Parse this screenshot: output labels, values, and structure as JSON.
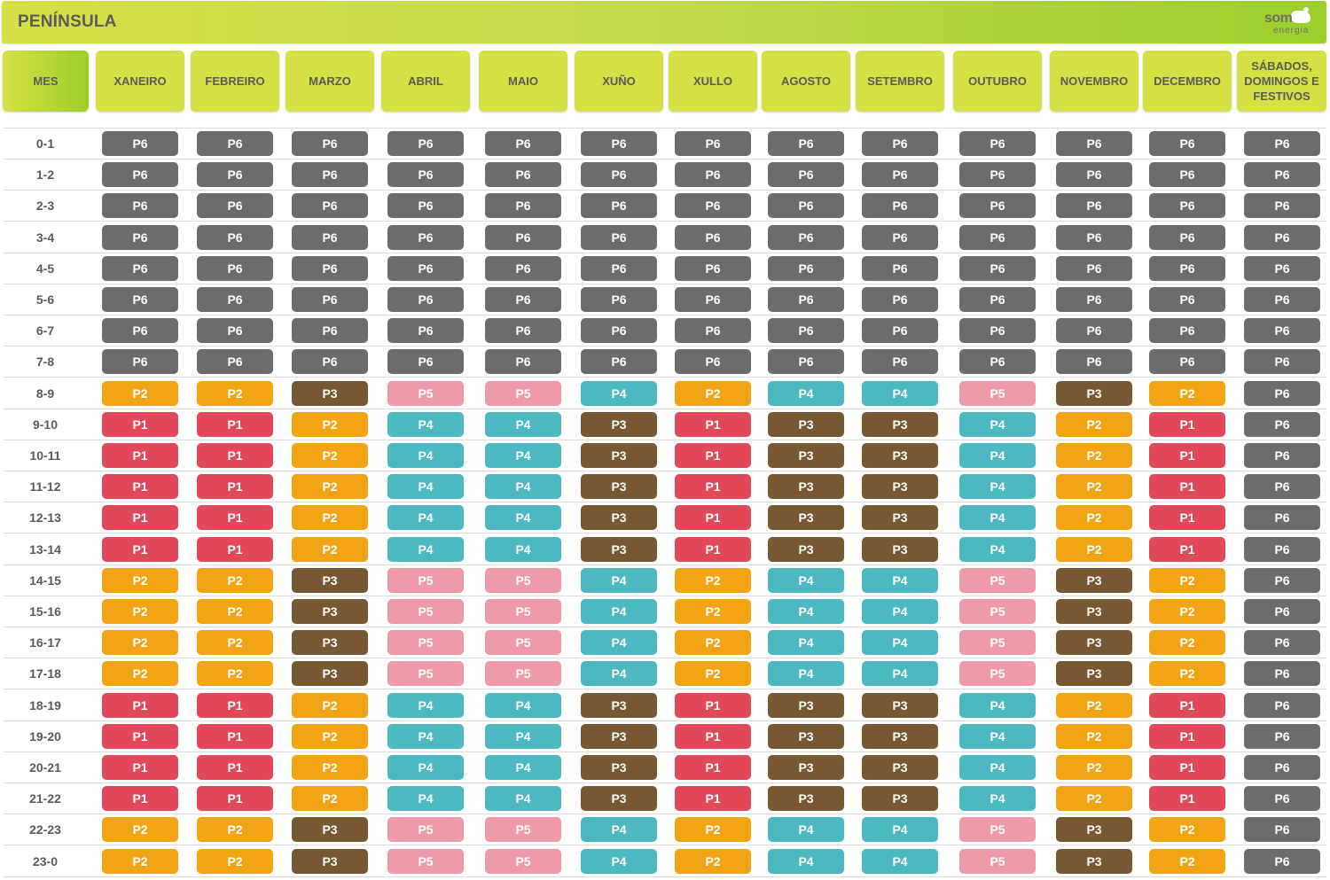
{
  "title": "PENÍNSULA",
  "logo": {
    "line1": "som",
    "line2": "energia"
  },
  "header": {
    "hour_col": "MES",
    "months": [
      "XANEIRO",
      "FEBREIRO",
      "MARZO",
      "ABRIL",
      "MAIO",
      "XUÑO",
      "XULLO",
      "AGOSTO",
      "SETEMBRO",
      "OUTUBRO",
      "NOVEMBRO",
      "DECEMBRO"
    ],
    "weekend": "SÁBADOS, DOMINGOS E FESTIVOS"
  },
  "period_colors": {
    "P1": "#e1495a",
    "P2": "#f2a414",
    "P3": "#785733",
    "P4": "#4cb8c1",
    "P5": "#ef9aa8",
    "P6": "#6c6c6c"
  },
  "hours": [
    "0-1",
    "1-2",
    "2-3",
    "3-4",
    "4-5",
    "5-6",
    "6-7",
    "7-8",
    "8-9",
    "9-10",
    "10-11",
    "11-12",
    "12-13",
    "13-14",
    "14-15",
    "15-16",
    "16-17",
    "17-18",
    "18-19",
    "19-20",
    "20-21",
    "21-22",
    "22-23",
    "23-0"
  ],
  "patterns": {
    "night": [
      "P6",
      "P6",
      "P6",
      "P6",
      "P6",
      "P6",
      "P6",
      "P6",
      "P6",
      "P6",
      "P6",
      "P6",
      "P6"
    ],
    "shoulder": [
      "P2",
      "P2",
      "P3",
      "P5",
      "P5",
      "P4",
      "P2",
      "P4",
      "P4",
      "P5",
      "P3",
      "P2",
      "P6"
    ],
    "peak": [
      "P1",
      "P1",
      "P2",
      "P4",
      "P4",
      "P3",
      "P1",
      "P3",
      "P3",
      "P4",
      "P2",
      "P1",
      "P6"
    ]
  },
  "rows": [
    [
      "P6",
      "P6",
      "P6",
      "P6",
      "P6",
      "P6",
      "P6",
      "P6",
      "P6",
      "P6",
      "P6",
      "P6",
      "P6"
    ],
    [
      "P6",
      "P6",
      "P6",
      "P6",
      "P6",
      "P6",
      "P6",
      "P6",
      "P6",
      "P6",
      "P6",
      "P6",
      "P6"
    ],
    [
      "P6",
      "P6",
      "P6",
      "P6",
      "P6",
      "P6",
      "P6",
      "P6",
      "P6",
      "P6",
      "P6",
      "P6",
      "P6"
    ],
    [
      "P6",
      "P6",
      "P6",
      "P6",
      "P6",
      "P6",
      "P6",
      "P6",
      "P6",
      "P6",
      "P6",
      "P6",
      "P6"
    ],
    [
      "P6",
      "P6",
      "P6",
      "P6",
      "P6",
      "P6",
      "P6",
      "P6",
      "P6",
      "P6",
      "P6",
      "P6",
      "P6"
    ],
    [
      "P6",
      "P6",
      "P6",
      "P6",
      "P6",
      "P6",
      "P6",
      "P6",
      "P6",
      "P6",
      "P6",
      "P6",
      "P6"
    ],
    [
      "P6",
      "P6",
      "P6",
      "P6",
      "P6",
      "P6",
      "P6",
      "P6",
      "P6",
      "P6",
      "P6",
      "P6",
      "P6"
    ],
    [
      "P6",
      "P6",
      "P6",
      "P6",
      "P6",
      "P6",
      "P6",
      "P6",
      "P6",
      "P6",
      "P6",
      "P6",
      "P6"
    ],
    [
      "P2",
      "P2",
      "P3",
      "P5",
      "P5",
      "P4",
      "P2",
      "P4",
      "P4",
      "P5",
      "P3",
      "P2",
      "P6"
    ],
    [
      "P1",
      "P1",
      "P2",
      "P4",
      "P4",
      "P3",
      "P1",
      "P3",
      "P3",
      "P4",
      "P2",
      "P1",
      "P6"
    ],
    [
      "P1",
      "P1",
      "P2",
      "P4",
      "P4",
      "P3",
      "P1",
      "P3",
      "P3",
      "P4",
      "P2",
      "P1",
      "P6"
    ],
    [
      "P1",
      "P1",
      "P2",
      "P4",
      "P4",
      "P3",
      "P1",
      "P3",
      "P3",
      "P4",
      "P2",
      "P1",
      "P6"
    ],
    [
      "P1",
      "P1",
      "P2",
      "P4",
      "P4",
      "P3",
      "P1",
      "P3",
      "P3",
      "P4",
      "P2",
      "P1",
      "P6"
    ],
    [
      "P1",
      "P1",
      "P2",
      "P4",
      "P4",
      "P3",
      "P1",
      "P3",
      "P3",
      "P4",
      "P2",
      "P1",
      "P6"
    ],
    [
      "P2",
      "P2",
      "P3",
      "P5",
      "P5",
      "P4",
      "P2",
      "P4",
      "P4",
      "P5",
      "P3",
      "P2",
      "P6"
    ],
    [
      "P2",
      "P2",
      "P3",
      "P5",
      "P5",
      "P4",
      "P2",
      "P4",
      "P4",
      "P5",
      "P3",
      "P2",
      "P6"
    ],
    [
      "P2",
      "P2",
      "P3",
      "P5",
      "P5",
      "P4",
      "P2",
      "P4",
      "P4",
      "P5",
      "P3",
      "P2",
      "P6"
    ],
    [
      "P2",
      "P2",
      "P3",
      "P5",
      "P5",
      "P4",
      "P2",
      "P4",
      "P4",
      "P5",
      "P3",
      "P2",
      "P6"
    ],
    [
      "P1",
      "P1",
      "P2",
      "P4",
      "P4",
      "P3",
      "P1",
      "P3",
      "P3",
      "P4",
      "P2",
      "P1",
      "P6"
    ],
    [
      "P1",
      "P1",
      "P2",
      "P4",
      "P4",
      "P3",
      "P1",
      "P3",
      "P3",
      "P4",
      "P2",
      "P1",
      "P6"
    ],
    [
      "P1",
      "P1",
      "P2",
      "P4",
      "P4",
      "P3",
      "P1",
      "P3",
      "P3",
      "P4",
      "P2",
      "P1",
      "P6"
    ],
    [
      "P1",
      "P1",
      "P2",
      "P4",
      "P4",
      "P3",
      "P1",
      "P3",
      "P3",
      "P4",
      "P2",
      "P1",
      "P6"
    ],
    [
      "P2",
      "P2",
      "P3",
      "P5",
      "P5",
      "P4",
      "P2",
      "P4",
      "P4",
      "P5",
      "P3",
      "P2",
      "P6"
    ],
    [
      "P2",
      "P2",
      "P3",
      "P5",
      "P5",
      "P4",
      "P2",
      "P4",
      "P4",
      "P5",
      "P3",
      "P2",
      "P6"
    ]
  ]
}
